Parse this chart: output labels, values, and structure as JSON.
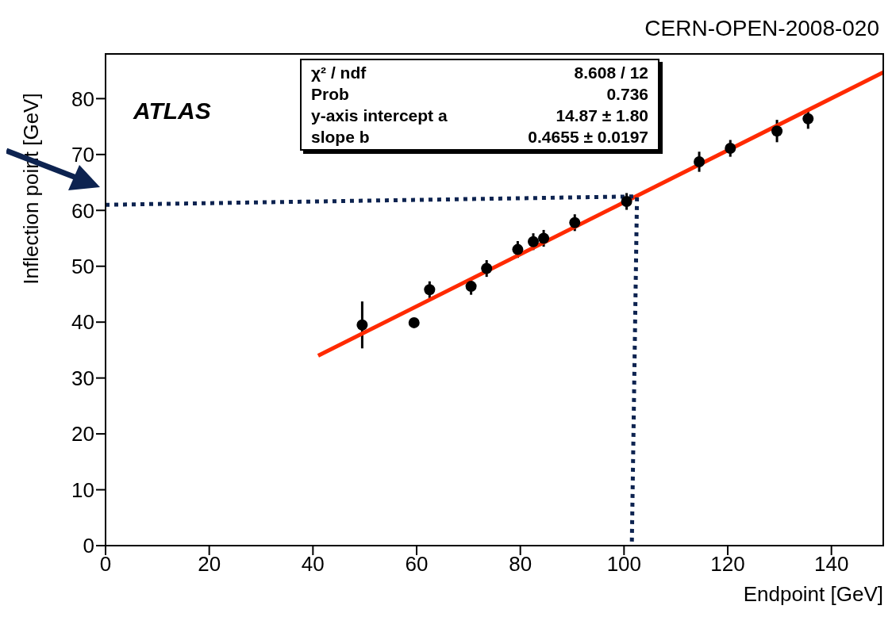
{
  "chart_data": {
    "type": "scatter",
    "xlabel": "Endpoint [GeV]",
    "ylabel": "Inflection point [GeV]",
    "xlim": [
      0,
      150
    ],
    "xticks": [
      0,
      20,
      40,
      60,
      80,
      100,
      120,
      140
    ],
    "ylim": [
      0,
      88
    ],
    "yticks": [
      0,
      10,
      20,
      30,
      40,
      50,
      60,
      70,
      80
    ],
    "annotations": [
      "CERN-OPEN-2008-020",
      "ATLAS",
      "χ² / ndf",
      "8.608 / 12",
      "Prob",
      "0.736",
      "y-axis intercept a",
      "14.87 ± 1.80",
      "slope b",
      "0.4655 ± 0.0197"
    ],
    "series": [
      {
        "color": "#000000",
        "marker": "circle",
        "x": [
          49.5,
          59.5,
          62.5,
          70.5,
          73.5,
          79.5,
          82.5,
          84.5,
          90.5,
          100.5,
          114.5,
          120.5,
          129.5,
          135.5
        ],
        "values": [
          39.5,
          39.9,
          45.8,
          46.4,
          49.6,
          53.0,
          54.4,
          55.0,
          57.8,
          61.6,
          68.7,
          71.1,
          74.2,
          76.4
        ],
        "errors": [
          4.2,
          0.7,
          1.5,
          1.5,
          1.5,
          1.5,
          1.5,
          1.5,
          1.5,
          1.5,
          1.8,
          1.5,
          2,
          1.8
        ]
      },
      {
        "type": "line",
        "color": "#ff2a00",
        "marker": "none",
        "line_style": "solid",
        "x": [
          41,
          150
        ],
        "values": [
          34.0,
          84.7
        ]
      },
      {
        "type": "line",
        "color": "#0d2350",
        "marker": "none",
        "line_style": "dotted",
        "x": [
          0,
          102.5,
          101.5
        ],
        "values": [
          61,
          62.5,
          0
        ]
      }
    ]
  }
}
